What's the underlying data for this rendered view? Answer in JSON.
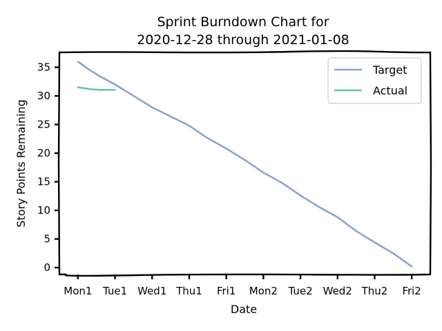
{
  "chart_data": {
    "type": "line",
    "title_line1": "Sprint Burndown Chart for",
    "title_line2": "2020-12-28 through 2021-01-08",
    "xlabel": "Date",
    "ylabel": "Story Points Remaining",
    "categories": [
      "Mon1",
      "Tue1",
      "Wed1",
      "Thu1",
      "Fri1",
      "Mon2",
      "Tue2",
      "Wed2",
      "Thu2",
      "Fri2"
    ],
    "yticks": [
      0,
      5,
      10,
      15,
      20,
      25,
      30,
      35
    ],
    "ylim": [
      -1.2,
      37.6
    ],
    "xlim": [
      -0.5,
      9.5
    ],
    "grid": false,
    "legend_position": "top-right",
    "series": [
      {
        "name": "Target",
        "color": "#8da0cb",
        "x": [
          0,
          0.3,
          0.6,
          1,
          1.5,
          2,
          2.5,
          3,
          3.5,
          4,
          4.5,
          5,
          5.5,
          6,
          6.5,
          7,
          7.5,
          8,
          8.5,
          9
        ],
        "values": [
          36,
          34.6,
          33.4,
          32,
          30,
          28,
          26.4,
          24.8,
          22.6,
          20.8,
          18.8,
          16.6,
          14.8,
          12.6,
          10.6,
          8.8,
          6.4,
          4.4,
          2.5,
          0.2
        ]
      },
      {
        "name": "Actual",
        "color": "#66c2a5",
        "x": [
          0,
          0.3,
          0.6,
          1
        ],
        "values": [
          31.5,
          31.2,
          31.05,
          31.05
        ]
      }
    ]
  }
}
